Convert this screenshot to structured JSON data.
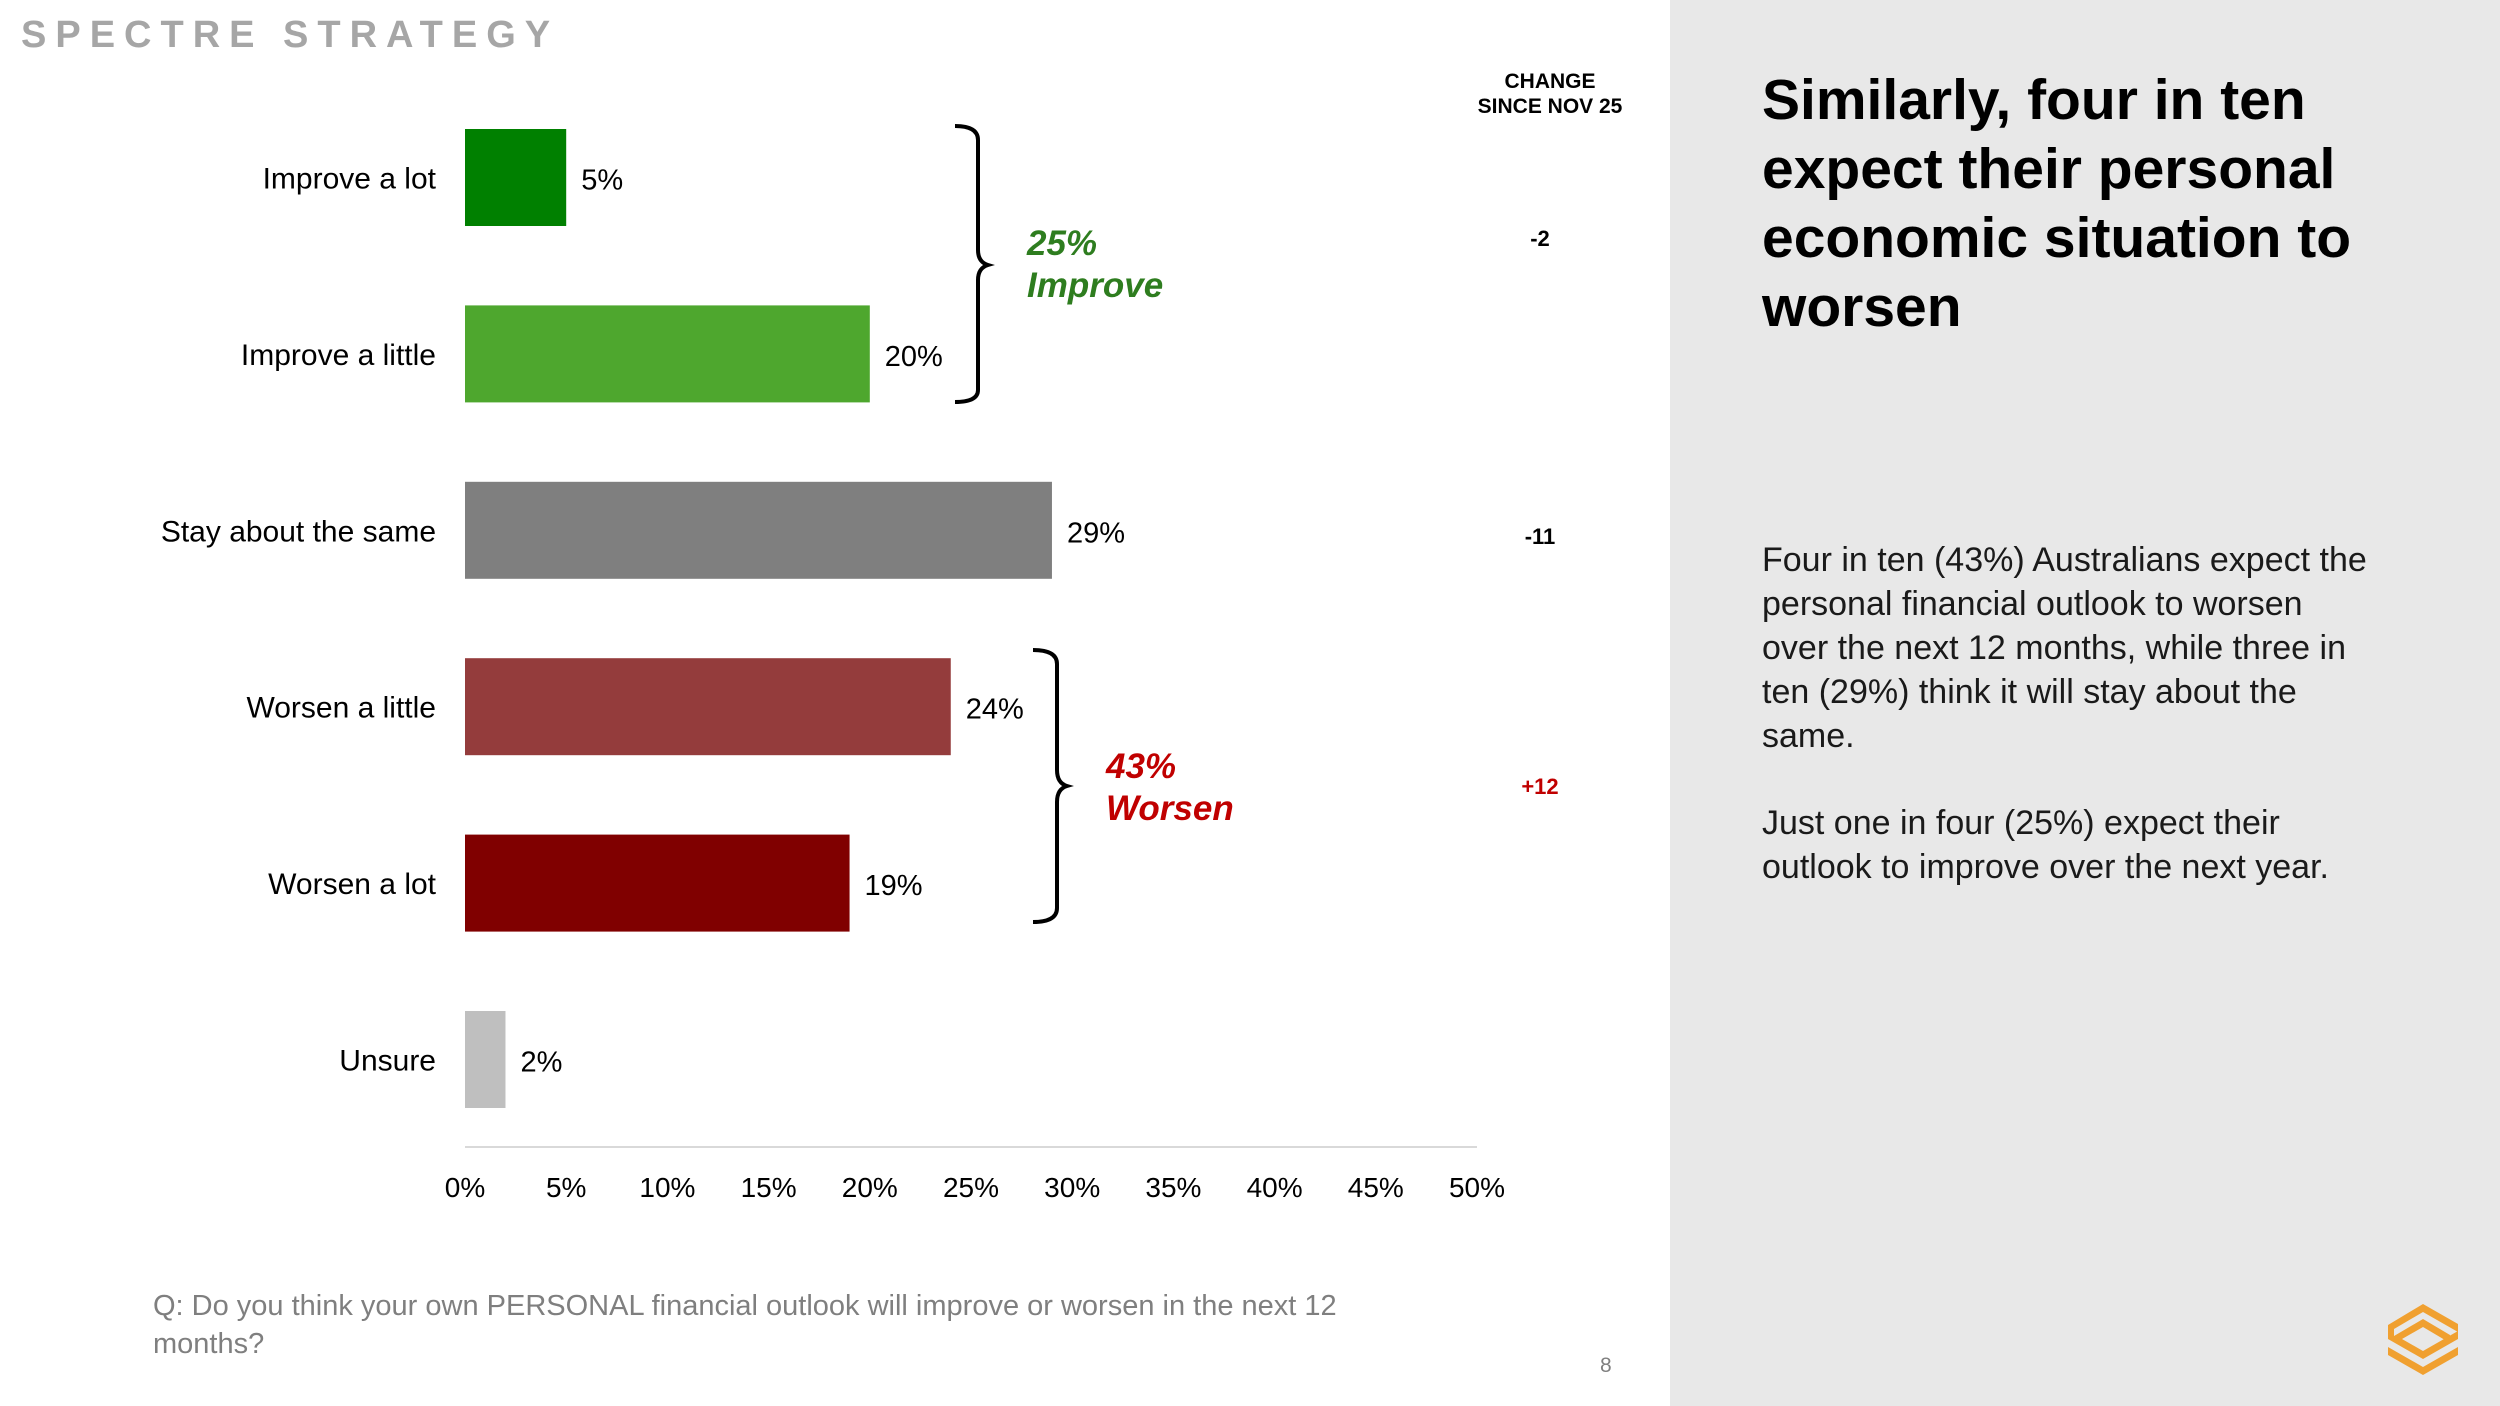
{
  "brand": "SPECTRE STRATEGY",
  "headline": "Similarly, four in ten expect their personal economic situation to worsen",
  "body": {
    "paragraph1": "Four in ten (43%) Australians expect the personal financial outlook to worsen over the next 12 months, while three in ten (29%) think it will stay about the same.",
    "paragraph2": "Just one in four (25%) expect their outlook to improve over the next year."
  },
  "change": {
    "header_line1": "CHANGE",
    "header_line2": "SINCE NOV 25",
    "improve": "-2",
    "same": "-11",
    "worsen": "+12"
  },
  "question": "Q: Do you think your own PERSONAL financial outlook will improve or worsen in the next 12 months?",
  "page_number": "8",
  "colors": {
    "improve_a_lot": "#008000",
    "improve_a_little": "#4ea72e",
    "stay_same": "#7f7f7f",
    "worsen_a_little": "#943c3c",
    "worsen_a_lot": "#800000",
    "unsure": "#bfbfbf",
    "improve_text": "#2e7d1f",
    "worsen_text": "#c00000",
    "logo": "#f0a030"
  },
  "chart_data": {
    "type": "bar",
    "orientation": "horizontal",
    "categories": [
      "Improve a lot",
      "Improve a little",
      "Stay about the same",
      "Worsen a little",
      "Worsen a lot",
      "Unsure"
    ],
    "values": [
      5,
      20,
      29,
      24,
      19,
      2
    ],
    "value_labels": [
      "5%",
      "20%",
      "29%",
      "24%",
      "19%",
      "2%"
    ],
    "xlim": [
      0,
      50
    ],
    "xticks": [
      0,
      5,
      10,
      15,
      20,
      25,
      30,
      35,
      40,
      45,
      50
    ],
    "xtick_labels": [
      "0%",
      "5%",
      "10%",
      "15%",
      "20%",
      "25%",
      "30%",
      "35%",
      "40%",
      "45%",
      "50%"
    ],
    "grid": false,
    "groups": [
      {
        "label_value": "25%",
        "label_text": "Improve",
        "categories": [
          "Improve a lot",
          "Improve a little"
        ]
      },
      {
        "label_value": "43%",
        "label_text": "Worsen",
        "categories": [
          "Worsen a little",
          "Worsen a lot"
        ]
      }
    ]
  }
}
